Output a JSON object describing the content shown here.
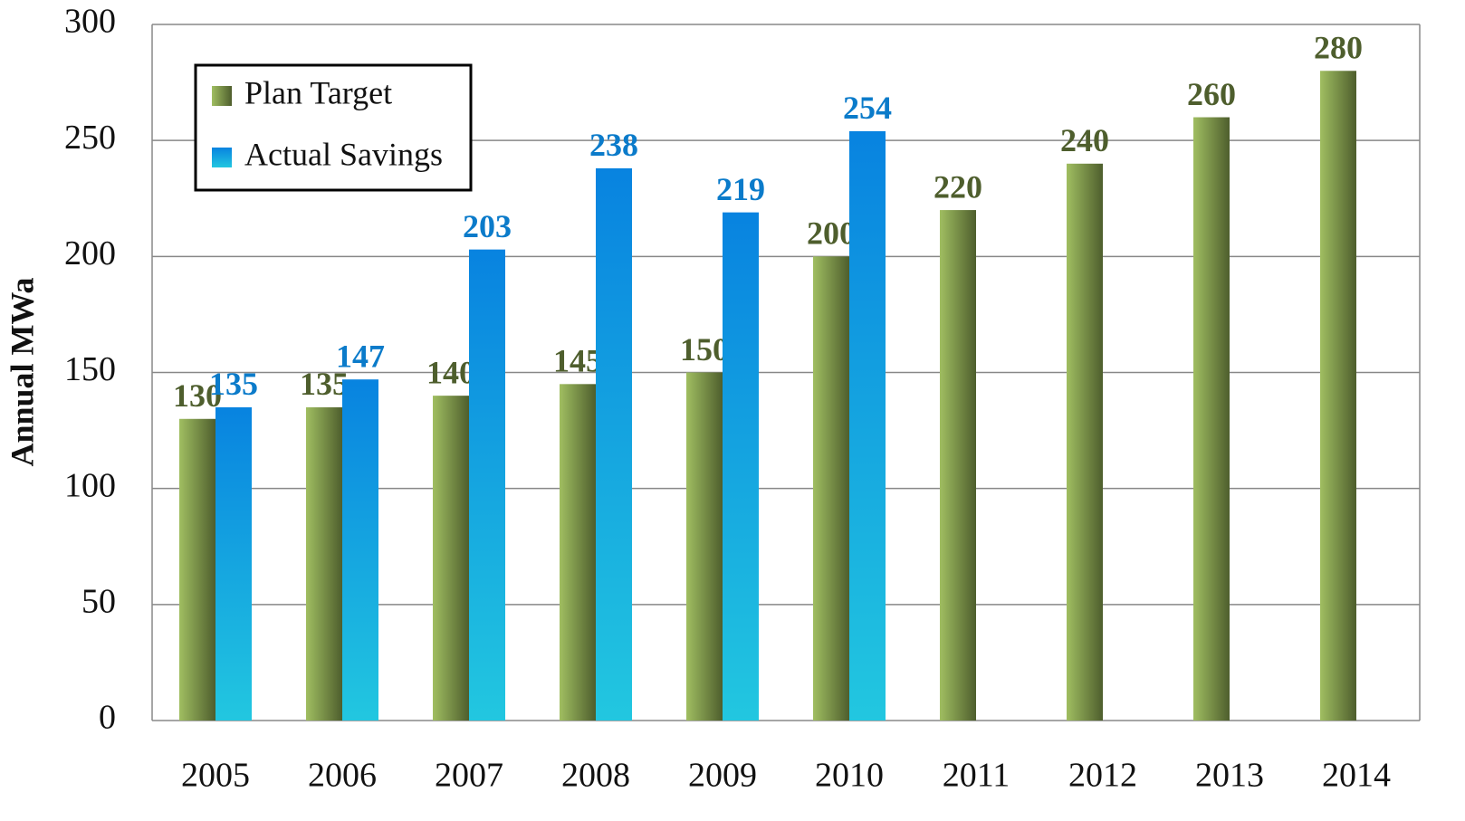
{
  "chart_data": {
    "type": "bar",
    "categories": [
      "2005",
      "2006",
      "2007",
      "2008",
      "2009",
      "2010",
      "2011",
      "2012",
      "2013",
      "2014"
    ],
    "series": [
      {
        "name": "Plan Target",
        "color": "#9bbb59",
        "values": [
          130,
          135,
          140,
          145,
          150,
          200,
          220,
          240,
          260,
          280
        ]
      },
      {
        "name": "Actual Savings",
        "color": "#149fe0",
        "values": [
          135,
          147,
          203,
          238,
          219,
          254,
          null,
          null,
          null,
          null
        ]
      }
    ],
    "y_label": "Annual MWa",
    "ylim": [
      0,
      300
    ],
    "yticks": [
      0,
      50,
      100,
      150,
      200,
      250,
      300
    ],
    "grid": true,
    "legend": "upper left"
  }
}
